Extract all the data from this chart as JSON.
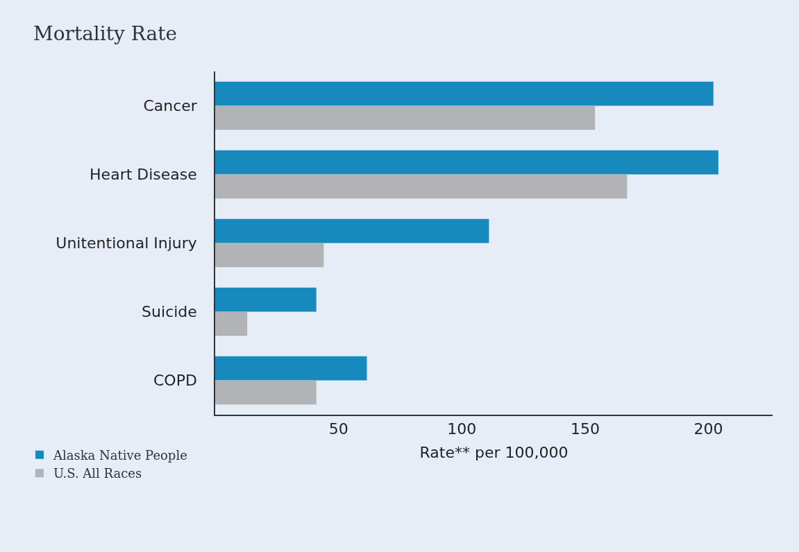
{
  "chart_data": {
    "type": "bar",
    "orientation": "horizontal",
    "title": "Mortality Rate",
    "xlabel": "Rate** per 100,000",
    "categories": [
      "Cancer",
      "Heart Disease",
      "Unitentional Injury",
      "Suicide",
      "COPD"
    ],
    "series": [
      {
        "name": "Alaska Native People",
        "color": "#1789bc",
        "values": [
          202,
          204,
          111,
          41,
          61.5
        ]
      },
      {
        "name": "U.S. All Races",
        "color": "#b2b3b7",
        "values": [
          154,
          167,
          44,
          13,
          41
        ]
      }
    ],
    "xlim": [
      0,
      226
    ],
    "xticks": [
      50,
      100,
      150,
      200
    ],
    "grid": false,
    "legend": "bottom left"
  }
}
